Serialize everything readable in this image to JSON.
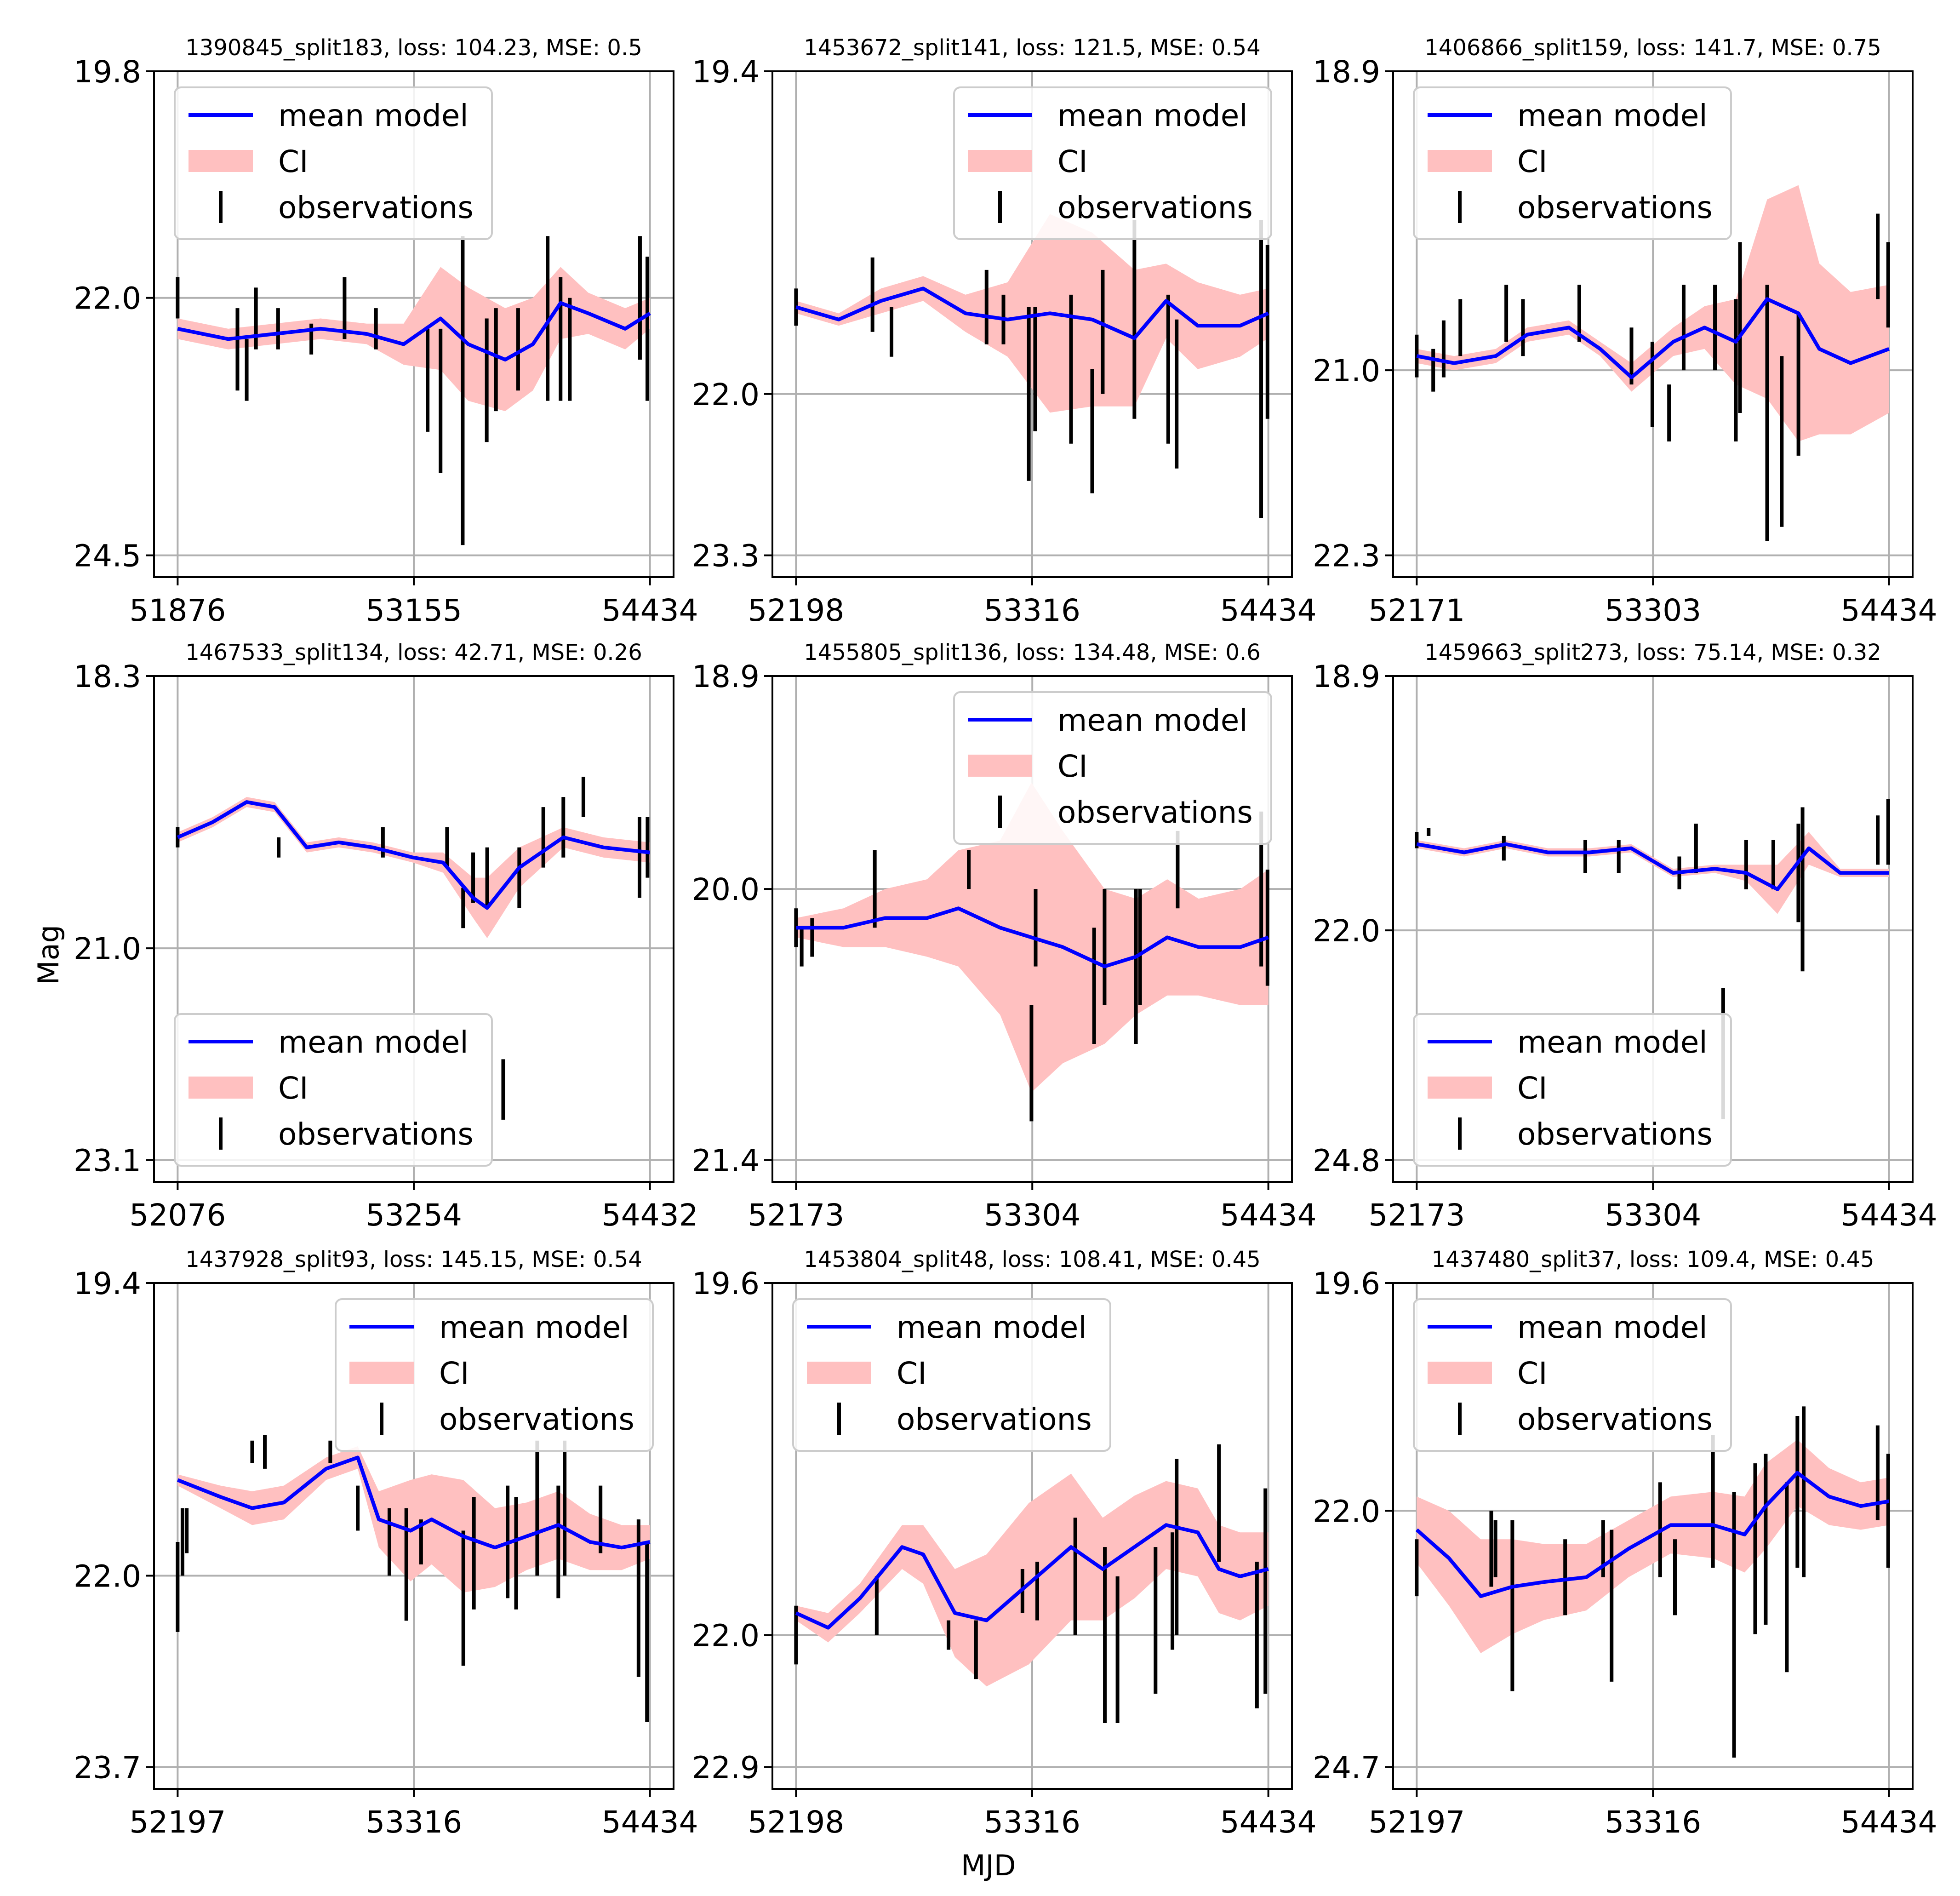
{
  "figure": {
    "xlabel": "MJD",
    "ylabel": "Mag",
    "colors": {
      "model": "#0000ff",
      "ci": "#ffc0c0",
      "obs": "#000000",
      "grid": "#b0b0b0"
    },
    "legend_labels": [
      "mean model",
      "CI",
      "observations"
    ]
  },
  "chart_data": [
    {
      "type": "line",
      "title": "1390845_split183, loss: 104.23, MSE: 0.5",
      "xticks": [
        "51876",
        "53155",
        "54434"
      ],
      "yticks": [
        "19.8",
        "22.0",
        "24.5"
      ],
      "xlim": [
        51876,
        54434
      ],
      "ylim": [
        24.5,
        19.8
      ],
      "legend": "upper-left",
      "model": {
        "x": [
          51876,
          52150,
          52400,
          52650,
          52900,
          53100,
          53300,
          53450,
          53650,
          53800,
          53950,
          54100,
          54300,
          54434
        ],
        "y": [
          22.3,
          22.4,
          22.35,
          22.3,
          22.35,
          22.45,
          22.2,
          22.45,
          22.6,
          22.45,
          22.05,
          22.15,
          22.3,
          22.15
        ],
        "ci": [
          0.1,
          0.1,
          0.1,
          0.1,
          0.1,
          0.2,
          0.5,
          0.55,
          0.5,
          0.45,
          0.35,
          0.2,
          0.2,
          0.15
        ]
      },
      "observations": {
        "x": [
          51876,
          52200,
          52250,
          52300,
          52420,
          52600,
          52780,
          52950,
          53230,
          53300,
          53420,
          53550,
          53600,
          53720,
          53880,
          53950,
          54000,
          54380,
          54420
        ],
        "y": [
          22.0,
          22.5,
          22.7,
          22.2,
          22.3,
          22.4,
          22.1,
          22.3,
          22.8,
          23.0,
          22.9,
          22.8,
          22.6,
          22.5,
          22.2,
          22.4,
          22.5,
          22.0,
          22.3
        ],
        "err": [
          0.2,
          0.4,
          0.3,
          0.3,
          0.2,
          0.15,
          0.3,
          0.2,
          0.5,
          0.7,
          1.5,
          0.6,
          0.5,
          0.4,
          0.8,
          0.6,
          0.5,
          0.6,
          0.7
        ]
      }
    },
    {
      "type": "line",
      "title": "1453672_split141, loss: 121.5, MSE: 0.54",
      "xticks": [
        "52198",
        "53316",
        "54434"
      ],
      "yticks": [
        "19.4",
        "22.0",
        "23.3"
      ],
      "xlim": [
        52198,
        54434
      ],
      "ylim": [
        23.3,
        19.4
      ],
      "legend": "upper-right",
      "model": {
        "x": [
          52198,
          52400,
          52600,
          52800,
          53000,
          53200,
          53400,
          53600,
          53800,
          53950,
          54100,
          54300,
          54434
        ],
        "y": [
          21.3,
          21.4,
          21.25,
          21.15,
          21.35,
          21.4,
          21.35,
          21.4,
          21.55,
          21.25,
          21.45,
          21.45,
          21.35
        ],
        "ci": [
          0.05,
          0.05,
          0.1,
          0.1,
          0.15,
          0.3,
          0.8,
          0.7,
          0.55,
          0.3,
          0.35,
          0.25,
          0.2
        ]
      },
      "observations": {
        "x": [
          52198,
          52560,
          52650,
          53100,
          53180,
          53300,
          53330,
          53500,
          53600,
          53650,
          53800,
          53960,
          54000,
          54400,
          54430
        ],
        "y": [
          21.3,
          21.2,
          21.5,
          21.3,
          21.4,
          22.0,
          21.8,
          21.8,
          22.3,
          21.5,
          21.4,
          21.8,
          22.0,
          21.8,
          21.5
        ],
        "err": [
          0.15,
          0.3,
          0.2,
          0.3,
          0.2,
          0.7,
          0.5,
          0.6,
          0.5,
          0.5,
          0.8,
          0.6,
          0.6,
          1.2,
          0.7
        ]
      }
    },
    {
      "type": "line",
      "title": "1406866_split159, loss: 141.7, MSE: 0.75",
      "xticks": [
        "52171",
        "53303",
        "54434"
      ],
      "yticks": [
        "18.9",
        "21.0",
        "22.3"
      ],
      "xlim": [
        52171,
        54434
      ],
      "ylim": [
        22.3,
        18.9
      ],
      "legend": "upper-left",
      "model": {
        "x": [
          52171,
          52350,
          52550,
          52700,
          52900,
          53050,
          53200,
          53400,
          53550,
          53700,
          53850,
          54000,
          54100,
          54250,
          54434
        ],
        "y": [
          20.9,
          20.95,
          20.9,
          20.75,
          20.7,
          20.85,
          21.05,
          20.8,
          20.7,
          20.8,
          20.5,
          20.6,
          20.85,
          20.95,
          20.85
        ],
        "ci": [
          0.05,
          0.05,
          0.05,
          0.05,
          0.05,
          0.05,
          0.1,
          0.1,
          0.15,
          0.3,
          0.7,
          0.9,
          0.6,
          0.5,
          0.45
        ]
      },
      "observations": {
        "x": [
          52171,
          52250,
          52300,
          52380,
          52600,
          52680,
          52950,
          53200,
          53300,
          53380,
          53450,
          53600,
          53700,
          53720,
          53850,
          53920,
          54000,
          54380,
          54430
        ],
        "y": [
          20.9,
          21.0,
          20.85,
          20.7,
          20.6,
          20.7,
          20.6,
          20.9,
          21.1,
          21.3,
          20.7,
          20.7,
          21.0,
          20.7,
          21.3,
          21.5,
          21.1,
          20.2,
          20.4
        ],
        "err": [
          0.15,
          0.15,
          0.2,
          0.2,
          0.2,
          0.2,
          0.2,
          0.2,
          0.3,
          0.2,
          0.3,
          0.3,
          0.5,
          0.6,
          0.9,
          0.6,
          0.5,
          0.3,
          0.3
        ]
      }
    },
    {
      "type": "line",
      "title": "1467533_split134, loss: 42.71, MSE: 0.26",
      "xticks": [
        "52076",
        "53254",
        "54432"
      ],
      "yticks": [
        "18.3",
        "21.0",
        "23.1"
      ],
      "xlim": [
        52076,
        54432
      ],
      "ylim": [
        23.1,
        18.3
      ],
      "legend": "lower-left",
      "model": {
        "x": [
          52076,
          52250,
          52420,
          52560,
          52720,
          52880,
          53050,
          53250,
          53400,
          53550,
          53620,
          53780,
          54000,
          54200,
          54432
        ],
        "y": [
          19.9,
          19.75,
          19.55,
          19.6,
          20.0,
          19.95,
          20.0,
          20.1,
          20.15,
          20.5,
          20.6,
          20.2,
          19.9,
          20.0,
          20.05
        ],
        "ci": [
          0.05,
          0.05,
          0.05,
          0.05,
          0.05,
          0.05,
          0.05,
          0.05,
          0.1,
          0.2,
          0.3,
          0.2,
          0.1,
          0.1,
          0.1
        ]
      },
      "observations": {
        "x": [
          52076,
          52580,
          53100,
          53420,
          53500,
          53550,
          53620,
          53700,
          53780,
          53900,
          54000,
          54100,
          54380,
          54420
        ],
        "y": [
          19.9,
          20.0,
          19.95,
          20.0,
          20.6,
          20.3,
          20.3,
          22.4,
          20.3,
          19.9,
          19.8,
          19.5,
          20.1,
          20.0
        ],
        "err": [
          0.1,
          0.1,
          0.15,
          0.2,
          0.2,
          0.25,
          0.3,
          0.3,
          0.3,
          0.3,
          0.3,
          0.2,
          0.4,
          0.3
        ]
      }
    },
    {
      "type": "line",
      "title": "1455805_split136, loss: 134.48, MSE: 0.6",
      "xticks": [
        "52173",
        "53304",
        "54434"
      ],
      "yticks": [
        "18.9",
        "20.0",
        "21.4"
      ],
      "xlim": [
        52173,
        54434
      ],
      "ylim": [
        21.4,
        18.9
      ],
      "legend": "upper-right",
      "model": {
        "x": [
          52173,
          52400,
          52600,
          52800,
          52950,
          53150,
          53300,
          53450,
          53650,
          53800,
          53950,
          54100,
          54300,
          54434
        ],
        "y": [
          20.2,
          20.2,
          20.15,
          20.15,
          20.1,
          20.2,
          20.25,
          20.3,
          20.4,
          20.35,
          20.25,
          20.3,
          20.3,
          20.25
        ],
        "ci": [
          0.05,
          0.1,
          0.15,
          0.2,
          0.3,
          0.45,
          0.8,
          0.6,
          0.4,
          0.3,
          0.3,
          0.25,
          0.3,
          0.35
        ]
      },
      "observations": {
        "x": [
          52173,
          52200,
          52250,
          52550,
          53000,
          53300,
          53320,
          53600,
          53650,
          53800,
          53820,
          54000,
          54400,
          54430
        ],
        "y": [
          20.2,
          20.3,
          20.25,
          20.0,
          19.9,
          20.9,
          20.2,
          20.5,
          20.3,
          20.4,
          20.3,
          19.9,
          20.0,
          20.2
        ],
        "err": [
          0.1,
          0.1,
          0.1,
          0.2,
          0.1,
          0.3,
          0.2,
          0.3,
          0.3,
          0.4,
          0.3,
          0.2,
          0.4,
          0.3
        ]
      }
    },
    {
      "type": "line",
      "title": "1459663_split273, loss: 75.14, MSE: 0.32",
      "xticks": [
        "52173",
        "53304",
        "54434"
      ],
      "yticks": [
        "18.9",
        "22.0",
        "24.8"
      ],
      "xlim": [
        52173,
        54434
      ],
      "ylim": [
        24.8,
        18.9
      ],
      "legend": "lower-left",
      "model": {
        "x": [
          52173,
          52400,
          52600,
          52800,
          53000,
          53200,
          53400,
          53600,
          53750,
          53900,
          54050,
          54200,
          54434
        ],
        "y": [
          20.95,
          21.05,
          20.95,
          21.05,
          21.05,
          21.0,
          21.3,
          21.25,
          21.3,
          21.5,
          21.0,
          21.3,
          21.3
        ],
        "ci": [
          0.05,
          0.05,
          0.05,
          0.05,
          0.05,
          0.05,
          0.05,
          0.05,
          0.1,
          0.3,
          0.2,
          0.05,
          0.05
        ]
      },
      "observations": {
        "x": [
          52173,
          52230,
          52590,
          52980,
          53140,
          53430,
          53510,
          53640,
          53750,
          53880,
          54000,
          54020,
          54380,
          54430
        ],
        "y": [
          20.9,
          20.8,
          21.0,
          21.1,
          21.1,
          21.3,
          21.0,
          23.5,
          21.2,
          21.2,
          21.3,
          21.5,
          20.9,
          20.8
        ],
        "err": [
          0.1,
          0.05,
          0.15,
          0.2,
          0.2,
          0.2,
          0.3,
          0.8,
          0.3,
          0.3,
          0.6,
          1.0,
          0.3,
          0.4
        ]
      }
    },
    {
      "type": "line",
      "title": "1437928_split93, loss: 145.15, MSE: 0.54",
      "xticks": [
        "52197",
        "53316",
        "54434"
      ],
      "yticks": [
        "19.4",
        "22.0",
        "23.7"
      ],
      "xlim": [
        52197,
        54434
      ],
      "ylim": [
        23.7,
        19.4
      ],
      "legend": "upper-right",
      "model": {
        "x": [
          52197,
          52400,
          52550,
          52700,
          52900,
          53050,
          53150,
          53300,
          53400,
          53550,
          53700,
          53850,
          54000,
          54150,
          54300,
          54434
        ],
        "y": [
          21.15,
          21.3,
          21.4,
          21.35,
          21.05,
          20.95,
          21.5,
          21.6,
          21.5,
          21.65,
          21.75,
          21.65,
          21.55,
          21.7,
          21.75,
          21.7
        ],
        "ci": [
          0.05,
          0.1,
          0.15,
          0.15,
          0.1,
          0.1,
          0.25,
          0.45,
          0.4,
          0.5,
          0.35,
          0.3,
          0.3,
          0.25,
          0.2,
          0.15
        ]
      },
      "observations": {
        "x": [
          52197,
          52220,
          52240,
          52550,
          52610,
          52920,
          53050,
          53200,
          53280,
          53350,
          53550,
          53600,
          53760,
          53800,
          53900,
          54000,
          54030,
          54200,
          54380,
          54420
        ],
        "y": [
          22.1,
          21.7,
          21.6,
          20.9,
          20.9,
          20.9,
          21.4,
          21.7,
          21.9,
          21.7,
          22.2,
          21.8,
          21.7,
          21.8,
          21.4,
          21.7,
          21.4,
          21.5,
          22.2,
          22.5
        ],
        "err": [
          0.4,
          0.3,
          0.2,
          0.1,
          0.15,
          0.1,
          0.2,
          0.3,
          0.5,
          0.2,
          0.6,
          0.5,
          0.5,
          0.5,
          0.6,
          0.5,
          0.6,
          0.3,
          0.7,
          0.8
        ]
      }
    },
    {
      "type": "line",
      "title": "1453804_split48, loss: 108.41, MSE: 0.45",
      "xticks": [
        "52198",
        "53316",
        "54434"
      ],
      "yticks": [
        "19.6",
        "22.0",
        "22.9"
      ],
      "xlim": [
        52198,
        54434
      ],
      "ylim": [
        22.9,
        19.6
      ],
      "legend": "upper-left",
      "model": {
        "x": [
          52198,
          52350,
          52500,
          52700,
          52800,
          52950,
          53100,
          53300,
          53500,
          53650,
          53800,
          53950,
          54100,
          54200,
          54300,
          54434
        ],
        "y": [
          21.85,
          21.95,
          21.75,
          21.4,
          21.45,
          21.85,
          21.9,
          21.65,
          21.4,
          21.55,
          21.4,
          21.25,
          21.3,
          21.55,
          21.6,
          21.55
        ],
        "ci": [
          0.05,
          0.1,
          0.1,
          0.15,
          0.2,
          0.3,
          0.45,
          0.55,
          0.5,
          0.35,
          0.35,
          0.3,
          0.3,
          0.3,
          0.3,
          0.25
        ]
      },
      "observations": {
        "x": [
          52198,
          52580,
          52920,
          53050,
          53270,
          53340,
          53520,
          53660,
          53720,
          53900,
          53980,
          54000,
          54200,
          54380,
          54420
        ],
        "y": [
          22.0,
          21.8,
          22.0,
          22.1,
          21.7,
          21.7,
          21.6,
          22.0,
          22.1,
          21.9,
          21.7,
          21.4,
          21.1,
          22.0,
          21.7
        ],
        "err": [
          0.2,
          0.2,
          0.1,
          0.2,
          0.15,
          0.2,
          0.4,
          0.6,
          0.5,
          0.5,
          0.4,
          0.6,
          0.4,
          0.5,
          0.7
        ]
      }
    },
    {
      "type": "line",
      "title": "1437480_split37, loss: 109.4, MSE: 0.45",
      "xticks": [
        "52197",
        "53316",
        "54434"
      ],
      "yticks": [
        "19.6",
        "22.0",
        "24.7"
      ],
      "xlim": [
        52197,
        54434
      ],
      "ylim": [
        24.7,
        19.6
      ],
      "legend": "upper-left",
      "model": {
        "x": [
          52197,
          52350,
          52500,
          52650,
          52800,
          53000,
          53200,
          53400,
          53600,
          53750,
          53850,
          54000,
          54150,
          54300,
          54434
        ],
        "y": [
          22.2,
          22.5,
          22.9,
          22.8,
          22.75,
          22.7,
          22.4,
          22.15,
          22.15,
          22.25,
          21.95,
          21.6,
          21.85,
          21.95,
          21.9
        ],
        "ci": [
          0.35,
          0.5,
          0.6,
          0.5,
          0.4,
          0.35,
          0.3,
          0.3,
          0.35,
          0.4,
          0.45,
          0.35,
          0.3,
          0.25,
          0.25
        ]
      },
      "observations": {
        "x": [
          52197,
          52550,
          52570,
          52650,
          52900,
          53080,
          53120,
          53350,
          53420,
          53600,
          53700,
          53800,
          53850,
          53950,
          54000,
          54030,
          54380,
          54430
        ],
        "y": [
          22.6,
          22.4,
          22.4,
          23.0,
          22.7,
          22.4,
          23.0,
          22.2,
          22.7,
          21.9,
          23.2,
          22.4,
          22.3,
          22.7,
          21.8,
          21.8,
          21.6,
          22.0
        ],
        "err": [
          0.3,
          0.4,
          0.3,
          0.9,
          0.4,
          0.3,
          0.8,
          0.5,
          0.4,
          0.7,
          1.4,
          0.9,
          0.9,
          1.0,
          0.8,
          0.9,
          0.5,
          0.6
        ]
      }
    }
  ]
}
